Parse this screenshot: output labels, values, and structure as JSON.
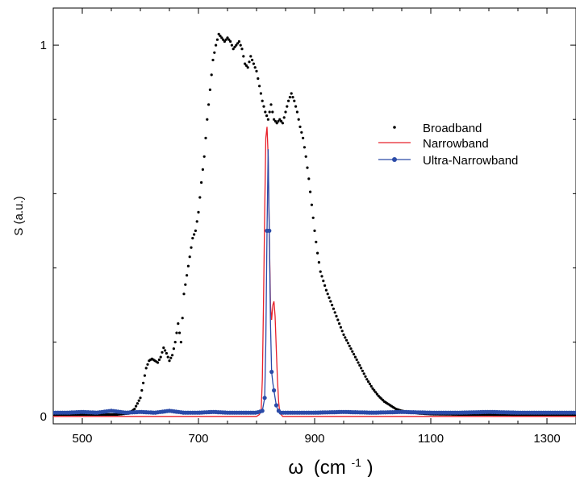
{
  "chart_data": {
    "type": "scatter",
    "xlabel_symbol": "ω",
    "xlabel_units_prefix": "(cm",
    "xlabel_units_exp": "-1",
    "xlabel_units_suffix": ")",
    "ylabel": "S (a.u.)",
    "xlim": [
      450,
      1350
    ],
    "ylim": [
      -0.02,
      1.1
    ],
    "x_ticks": [
      500,
      700,
      900,
      1100,
      1300
    ],
    "x_tick_labels": [
      "500",
      "700",
      "900",
      "1100",
      "1300"
    ],
    "y_ticks": [
      0,
      1
    ],
    "y_tick_labels": [
      "0",
      "1"
    ],
    "legend_position": "right",
    "grid": false,
    "series": [
      {
        "name": "Broadband",
        "style": "dots",
        "color": "#000000",
        "x": [
          450,
          560,
          580,
          590,
          600,
          605,
          610,
          615,
          620,
          625,
          630,
          635,
          640,
          645,
          650,
          655,
          660,
          665,
          670,
          675,
          680,
          685,
          690,
          695,
          700,
          705,
          710,
          715,
          720,
          725,
          730,
          735,
          740,
          745,
          750,
          755,
          760,
          765,
          770,
          775,
          780,
          785,
          790,
          795,
          800,
          805,
          810,
          815,
          820,
          825,
          830,
          835,
          840,
          845,
          850,
          855,
          860,
          865,
          870,
          875,
          880,
          885,
          890,
          895,
          900,
          905,
          910,
          920,
          930,
          940,
          950,
          960,
          970,
          980,
          990,
          1000,
          1010,
          1020,
          1030,
          1040,
          1050,
          1060,
          1070,
          1080,
          1100,
          1150,
          1200,
          1250,
          1300,
          1350
        ],
        "y": [
          0.005,
          0.005,
          0.008,
          0.02,
          0.05,
          0.09,
          0.13,
          0.15,
          0.155,
          0.15,
          0.145,
          0.16,
          0.185,
          0.17,
          0.15,
          0.165,
          0.2,
          0.25,
          0.2,
          0.33,
          0.38,
          0.43,
          0.48,
          0.5,
          0.55,
          0.63,
          0.7,
          0.8,
          0.88,
          0.96,
          1.0,
          1.03,
          1.02,
          1.01,
          1.02,
          1.01,
          0.99,
          1.0,
          1.01,
          0.99,
          0.95,
          0.94,
          0.97,
          0.95,
          0.93,
          0.89,
          0.85,
          0.82,
          0.8,
          0.84,
          0.8,
          0.79,
          0.8,
          0.79,
          0.82,
          0.85,
          0.87,
          0.85,
          0.82,
          0.78,
          0.75,
          0.7,
          0.64,
          0.57,
          0.5,
          0.44,
          0.39,
          0.34,
          0.3,
          0.26,
          0.22,
          0.19,
          0.16,
          0.13,
          0.1,
          0.075,
          0.055,
          0.04,
          0.03,
          0.02,
          0.015,
          0.012,
          0.01,
          0.008,
          0.006,
          0.005,
          0.005,
          0.004,
          0.004,
          0.004
        ]
      },
      {
        "name": "Narrowband",
        "style": "line",
        "color": "#e8202a",
        "x": [
          450,
          800,
          805,
          808,
          810,
          812,
          814,
          816,
          818,
          820,
          822,
          824,
          826,
          828,
          830,
          832,
          834,
          836,
          838,
          840,
          845,
          1350
        ],
        "y": [
          0.0,
          0.0,
          0.005,
          0.02,
          0.1,
          0.3,
          0.55,
          0.75,
          0.78,
          0.7,
          0.5,
          0.3,
          0.26,
          0.3,
          0.31,
          0.27,
          0.18,
          0.1,
          0.04,
          0.01,
          0.0,
          0.0
        ]
      },
      {
        "name": "Ultra-Narrowband",
        "style": "line-markers",
        "color": "#2b4ba8",
        "x": [
          450,
          475,
          500,
          525,
          550,
          575,
          600,
          625,
          650,
          675,
          700,
          725,
          750,
          775,
          790,
          800,
          810,
          814,
          816,
          818,
          820,
          822,
          824,
          826,
          828,
          830,
          832,
          834,
          836,
          840,
          850,
          870,
          900,
          950,
          1000,
          1050,
          1100,
          1150,
          1200,
          1250,
          1300,
          1350
        ],
        "y": [
          0.01,
          0.01,
          0.012,
          0.01,
          0.015,
          0.01,
          0.012,
          0.01,
          0.015,
          0.01,
          0.01,
          0.012,
          0.01,
          0.01,
          0.01,
          0.01,
          0.015,
          0.05,
          0.2,
          0.5,
          0.72,
          0.5,
          0.25,
          0.12,
          0.09,
          0.07,
          0.05,
          0.03,
          0.02,
          0.01,
          0.01,
          0.01,
          0.01,
          0.012,
          0.01,
          0.012,
          0.01,
          0.01,
          0.012,
          0.01,
          0.01,
          0.01
        ]
      }
    ]
  }
}
